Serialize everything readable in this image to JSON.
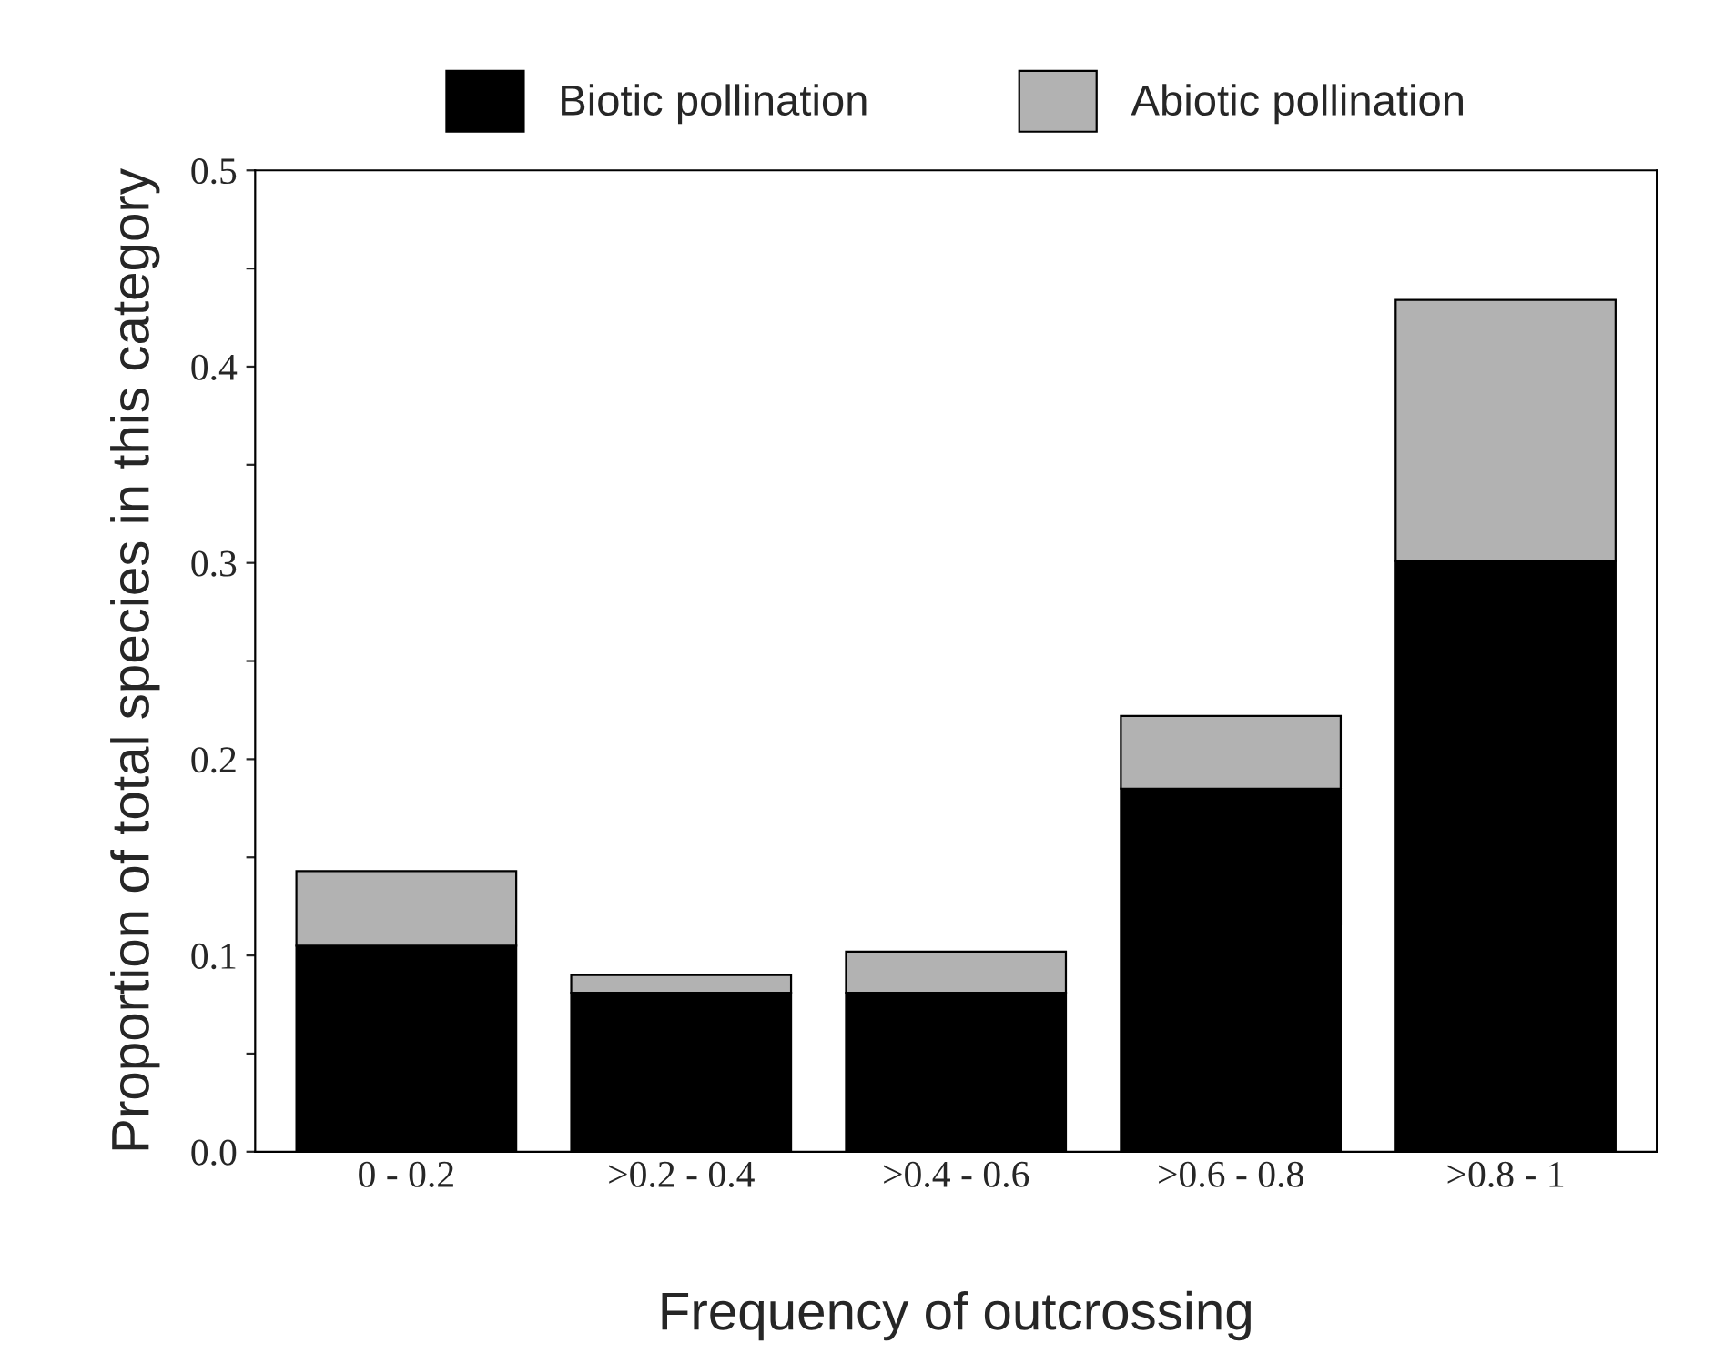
{
  "chart_data": {
    "type": "bar",
    "stacked": true,
    "xlabel": "Frequency of outcrossing",
    "ylabel": "Proportion of total species in this category",
    "categories": [
      "0 - 0.2",
      ">0.2 - 0.4",
      ">0.4 - 0.6",
      ">0.6 - 0.8",
      ">0.8 - 1"
    ],
    "series": [
      {
        "name": "Biotic pollination",
        "color": "#000000",
        "values": [
          0.105,
          0.081,
          0.081,
          0.185,
          0.301
        ]
      },
      {
        "name": "Abiotic pollination",
        "color": "#b2b2b2",
        "values": [
          0.038,
          0.009,
          0.021,
          0.037,
          0.133
        ]
      }
    ],
    "ylim": [
      0,
      0.5
    ],
    "yticks": [
      {
        "value": 0,
        "label": "0.0"
      },
      {
        "value": 0.05,
        "label": null
      },
      0.1,
      {
        "value": 0.15,
        "label": null
      },
      0.2,
      {
        "value": 0.25,
        "label": null
      },
      0.3,
      {
        "value": 0.35,
        "label": null
      },
      0.4,
      {
        "value": 0.45,
        "label": null
      },
      0.5
    ],
    "grid": false,
    "legend": "top"
  }
}
